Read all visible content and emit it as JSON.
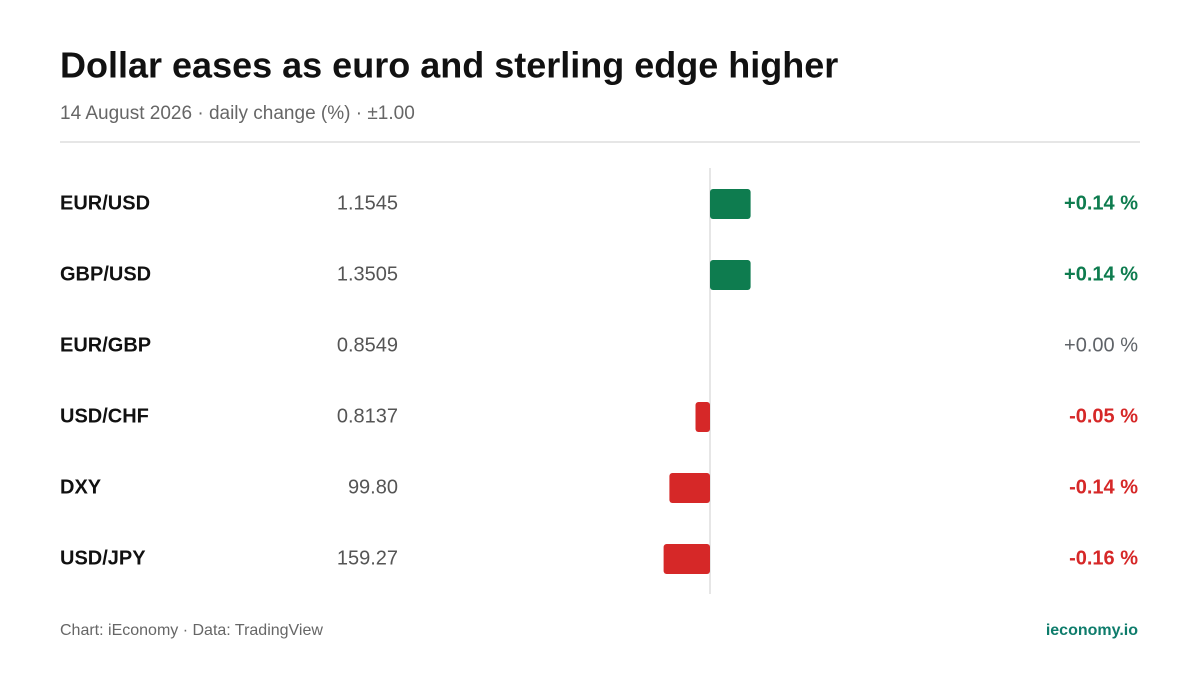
{
  "chart_data": {
    "type": "bar",
    "title": "Dollar eases as euro and sterling edge higher",
    "subtitle": "14 August 2026 · daily change (%) · ±1.00",
    "categories": [
      "EUR/USD",
      "GBP/USD",
      "EUR/GBP",
      "USD/CHF",
      "DXY",
      "USD/JPY"
    ],
    "prices": [
      "1.1545",
      "1.3505",
      "0.8549",
      "0.8137",
      "99.80",
      "159.27"
    ],
    "values": [
      0.14,
      0.14,
      0.0,
      -0.05,
      -0.14,
      -0.16
    ],
    "value_labels": [
      "+0.14 %",
      "+0.14 %",
      "+0.00 %",
      "-0.05 %",
      "-0.14 %",
      "-0.16 %"
    ],
    "xlim": [
      -1,
      1
    ],
    "positive_color": "#0e7c4f",
    "negative_color": "#d62828",
    "neutral_color": "#5f6368",
    "source": "Chart: iEconomy · Data: TradingView",
    "brand": "ieconomy.io"
  }
}
